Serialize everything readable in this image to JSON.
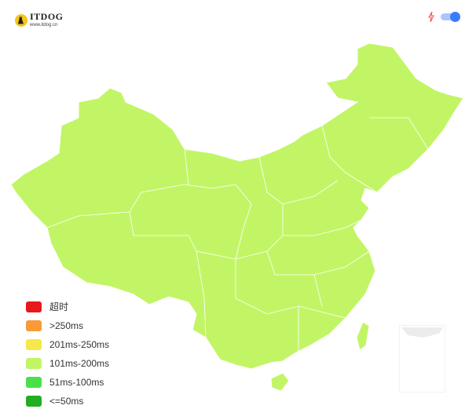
{
  "logo": {
    "name": "ITDOG",
    "url": "www.itdog.cn"
  },
  "toolbar": {
    "bolt_icon": "lightning-icon",
    "toggle_on": true,
    "toggle_color": "#3b7cff"
  },
  "map": {
    "region_fill": "#c2f566",
    "border_color": "#ffffff"
  },
  "legend": [
    {
      "label": "超时",
      "color": "#e8191a"
    },
    {
      "label": ">250ms",
      "color": "#f89b38"
    },
    {
      "label": "201ms-250ms",
      "color": "#f5e84a"
    },
    {
      "label": "101ms-200ms",
      "color": "#c2f566"
    },
    {
      "label": "51ms-100ms",
      "color": "#4ae04a"
    },
    {
      "label": "<=50ms",
      "color": "#22ad22"
    }
  ]
}
